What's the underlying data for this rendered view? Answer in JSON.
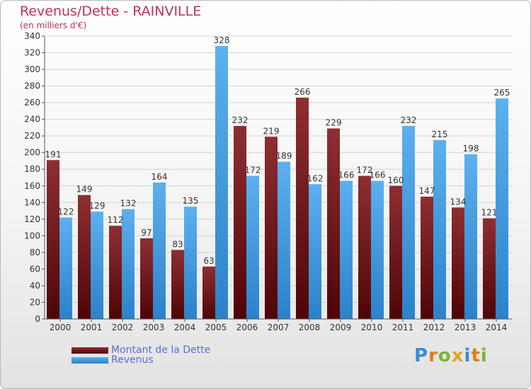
{
  "chart_data": {
    "type": "bar",
    "title": "Revenus/Dette - RAINVILLE",
    "subtitle": "(en milliers d'€)",
    "xlabel": "",
    "ylabel": "",
    "ylim": [
      0,
      340
    ],
    "y_ticks": [
      0,
      20,
      40,
      60,
      80,
      100,
      120,
      140,
      160,
      180,
      200,
      220,
      240,
      260,
      280,
      300,
      320,
      340
    ],
    "grid": true,
    "legend_position": "bottom-left",
    "categories": [
      "2000",
      "2001",
      "2002",
      "2003",
      "2004",
      "2005",
      "2006",
      "2007",
      "2008",
      "2009",
      "2010",
      "2011",
      "2012",
      "2013",
      "2014"
    ],
    "series": [
      {
        "name": "Montant de la Dette",
        "color": "#7a1f24",
        "values": [
          191,
          149,
          112,
          97,
          83,
          63,
          232,
          219,
          266,
          229,
          172,
          160,
          147,
          134,
          121
        ]
      },
      {
        "name": "Revenus",
        "color": "#3b9be0",
        "values": [
          122,
          129,
          132,
          164,
          135,
          328,
          172,
          189,
          162,
          166,
          166,
          232,
          215,
          198,
          265
        ]
      }
    ]
  },
  "legend": {
    "dette_label": "Montant de la Dette",
    "revenus_label": "Revenus"
  },
  "branding": {
    "logo_letters": [
      "P",
      "r",
      "o",
      "x",
      "i",
      "t",
      "i"
    ],
    "logo_colors": [
      "#3a8ad6",
      "#e07b1a",
      "#79b530",
      "#e0a52b",
      "#3a8ad6",
      "#e07b1a",
      "#79b530"
    ]
  }
}
